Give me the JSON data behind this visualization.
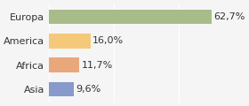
{
  "categories": [
    "Europa",
    "America",
    "Africa",
    "Asia"
  ],
  "values": [
    62.7,
    16.0,
    11.7,
    9.6
  ],
  "labels": [
    "62,7%",
    "16,0%",
    "11,7%",
    "9,6%"
  ],
  "bar_colors": [
    "#a8bc8a",
    "#f5c97a",
    "#e8a87c",
    "#8899cc"
  ],
  "background_color": "#f5f5f5",
  "xlim": [
    0,
    75
  ],
  "bar_height": 0.6,
  "label_fontsize": 8,
  "category_fontsize": 8
}
